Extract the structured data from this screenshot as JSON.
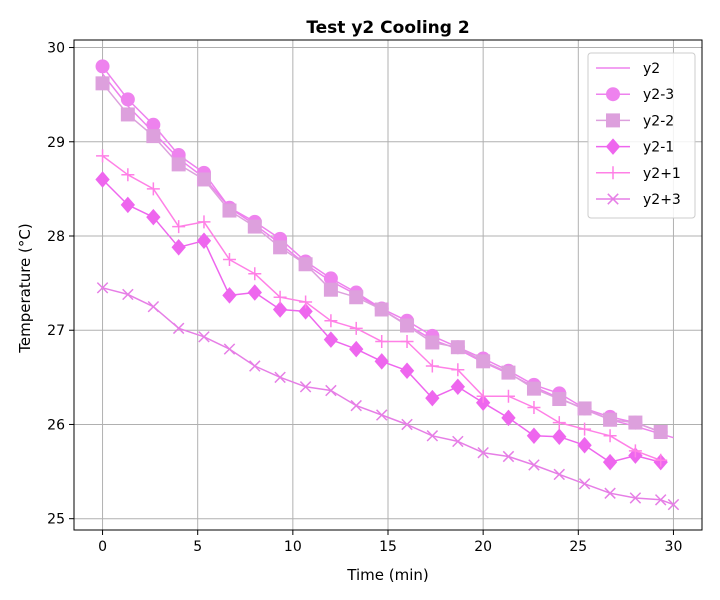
{
  "chart_data": {
    "type": "line",
    "title": "Test y2 Cooling 2",
    "xlabel": "Time (min)",
    "ylabel": "Temperature (°C)",
    "xlim": [
      -1.5,
      31.5
    ],
    "ylim": [
      24.88,
      30.08
    ],
    "xticks": [
      0,
      5,
      10,
      15,
      20,
      25,
      30
    ],
    "yticks": [
      25,
      26,
      27,
      28,
      29,
      30
    ],
    "grid": true,
    "legend_position": "top-right",
    "series": [
      {
        "name": "y2",
        "color": "#ee82ee",
        "marker": "none",
        "x": [
          0,
          1.33,
          2.67,
          4,
          5.33,
          6.67,
          8,
          9.33,
          10.67,
          12,
          13.33,
          14.67,
          16,
          17.33,
          18.67,
          20,
          21.33,
          22.67,
          24,
          25.33,
          26.67,
          28,
          29.33,
          30
        ],
        "y": [
          29.72,
          29.38,
          29.1,
          28.82,
          28.62,
          28.3,
          28.12,
          27.92,
          27.7,
          27.52,
          27.38,
          27.22,
          27.06,
          26.9,
          26.8,
          26.66,
          26.54,
          26.4,
          26.28,
          26.16,
          26.05,
          25.98,
          25.9,
          25.86
        ]
      },
      {
        "name": "y2-3",
        "color": "#ee82ee",
        "marker": "circle",
        "x": [
          0,
          1.33,
          2.67,
          4,
          5.33,
          6.67,
          8,
          9.33,
          10.67,
          12,
          13.33,
          14.67,
          16,
          17.33,
          18.67,
          20,
          21.33,
          22.67,
          24,
          25.33,
          26.67,
          28,
          29.33
        ],
        "y": [
          29.8,
          29.45,
          29.18,
          28.86,
          28.67,
          28.3,
          28.15,
          27.97,
          27.73,
          27.55,
          27.4,
          27.23,
          27.1,
          26.94,
          26.82,
          26.7,
          26.57,
          26.42,
          26.33,
          26.17,
          26.08,
          26.02,
          25.92
        ]
      },
      {
        "name": "y2-2",
        "color": "#dda0dd",
        "marker": "square",
        "x": [
          0,
          1.33,
          2.67,
          4,
          5.33,
          6.67,
          8,
          9.33,
          10.67,
          12,
          13.33,
          14.67,
          16,
          17.33,
          18.67,
          20,
          21.33,
          22.67,
          24,
          25.33,
          26.67,
          28,
          29.33
        ],
        "y": [
          29.62,
          29.29,
          29.06,
          28.76,
          28.6,
          28.27,
          28.1,
          27.88,
          27.7,
          27.43,
          27.35,
          27.22,
          27.05,
          26.87,
          26.82,
          26.67,
          26.55,
          26.38,
          26.27,
          26.17,
          26.05,
          26.02,
          25.92
        ]
      },
      {
        "name": "y2-1",
        "color": "#ee66ee",
        "marker": "diamond",
        "x": [
          0,
          1.33,
          2.67,
          4,
          5.33,
          6.67,
          8,
          9.33,
          10.67,
          12,
          13.33,
          14.67,
          16,
          17.33,
          18.67,
          20,
          21.33,
          22.67,
          24,
          25.33,
          26.67,
          28,
          29.33
        ],
        "y": [
          28.6,
          28.33,
          28.2,
          27.88,
          27.95,
          27.37,
          27.4,
          27.22,
          27.2,
          26.9,
          26.8,
          26.67,
          26.57,
          26.28,
          26.4,
          26.23,
          26.07,
          25.88,
          25.87,
          25.78,
          25.6,
          25.67,
          25.6
        ]
      },
      {
        "name": "y2+1",
        "color": "#ff80e6",
        "marker": "plus",
        "x": [
          0,
          1.33,
          2.67,
          4,
          5.33,
          6.67,
          8,
          9.33,
          10.67,
          12,
          13.33,
          14.67,
          16,
          17.33,
          18.67,
          20,
          21.33,
          22.67,
          24,
          25.33,
          26.67,
          28,
          29.33
        ],
        "y": [
          28.85,
          28.65,
          28.5,
          28.1,
          28.15,
          27.75,
          27.6,
          27.35,
          27.3,
          27.1,
          27.02,
          26.88,
          26.88,
          26.62,
          26.58,
          26.3,
          26.3,
          26.18,
          26.02,
          25.95,
          25.88,
          25.72,
          25.62
        ]
      },
      {
        "name": "y2+3",
        "color": "#e67ee6",
        "marker": "x",
        "x": [
          0,
          1.33,
          2.67,
          4,
          5.33,
          6.67,
          8,
          9.33,
          10.67,
          12,
          13.33,
          14.67,
          16,
          17.33,
          18.67,
          20,
          21.33,
          22.67,
          24,
          25.33,
          26.67,
          28,
          29.33,
          30
        ],
        "y": [
          27.45,
          27.38,
          27.25,
          27.02,
          26.93,
          26.8,
          26.62,
          26.5,
          26.4,
          26.36,
          26.2,
          26.1,
          26.0,
          25.88,
          25.82,
          25.7,
          25.66,
          25.57,
          25.47,
          25.37,
          25.27,
          25.22,
          25.2,
          25.15
        ]
      }
    ]
  }
}
